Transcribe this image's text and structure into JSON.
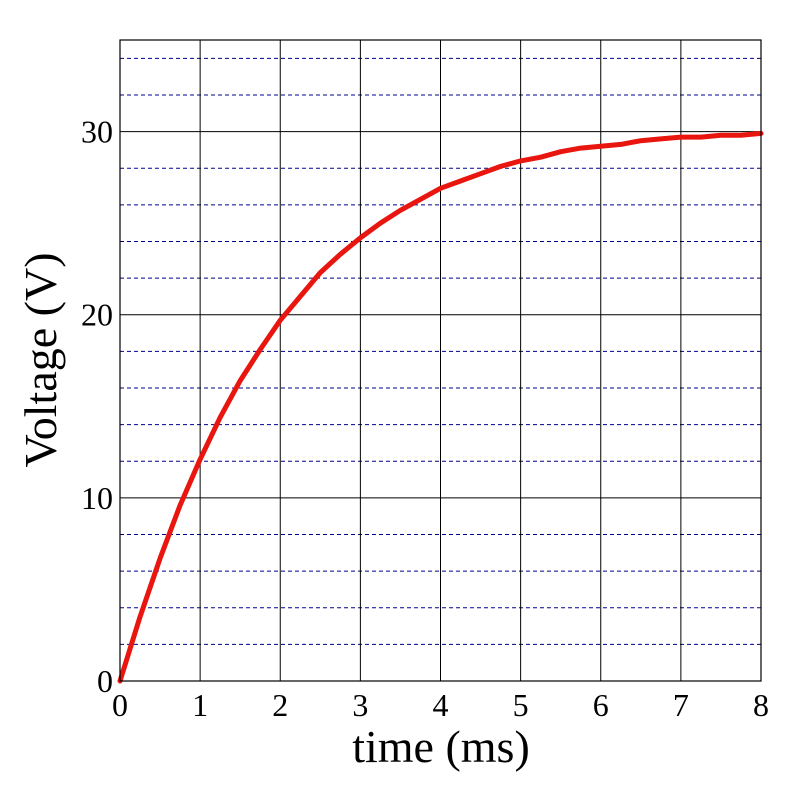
{
  "chart_data": {
    "type": "line",
    "title": "",
    "xlabel": "time (ms)",
    "ylabel": "Voltage (V)",
    "xlim": [
      0,
      8
    ],
    "ylim": [
      0,
      35
    ],
    "x_ticks": [
      "0",
      "1",
      "2",
      "3",
      "4",
      "5",
      "6",
      "7",
      "8"
    ],
    "y_ticks": [
      "0",
      "10",
      "20",
      "30"
    ],
    "x_major_grid": [
      0,
      1,
      2,
      3,
      4,
      5,
      6,
      7,
      8
    ],
    "y_major_grid": [
      0,
      10,
      20,
      30
    ],
    "y_minor_grid": [
      2,
      4,
      6,
      8,
      12,
      14,
      16,
      18,
      22,
      24,
      26,
      28,
      32,
      34
    ],
    "grid": true,
    "colors": {
      "series": "#e8160e",
      "major_grid": "#000000",
      "minor_grid": "#00008b"
    },
    "series": [
      {
        "x": [
          0,
          0.25,
          0.5,
          0.75,
          1,
          1.25,
          1.5,
          1.75,
          2,
          2.25,
          2.5,
          2.75,
          3,
          3.25,
          3.5,
          3.75,
          4,
          4.25,
          4.5,
          4.75,
          5,
          5.25,
          5.5,
          5.75,
          6,
          6.25,
          6.5,
          6.75,
          7,
          7.25,
          7.5,
          7.75,
          8
        ],
        "y": [
          0,
          3.5,
          6.7,
          9.6,
          12.1,
          14.4,
          16.4,
          18.1,
          19.7,
          21.0,
          22.3,
          23.3,
          24.2,
          25.0,
          25.7,
          26.3,
          26.9,
          27.3,
          27.7,
          28.1,
          28.4,
          28.6,
          28.9,
          29.1,
          29.2,
          29.3,
          29.5,
          29.6,
          29.7,
          29.7,
          29.8,
          29.8,
          29.9
        ]
      }
    ]
  }
}
